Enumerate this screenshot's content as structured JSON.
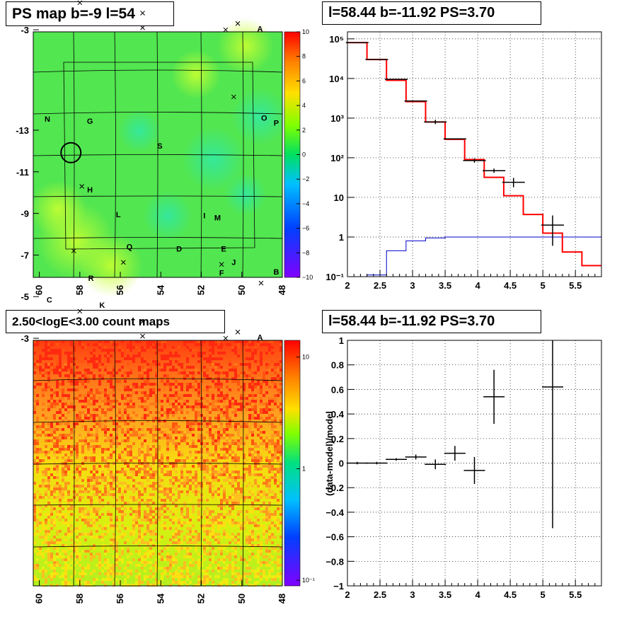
{
  "titles": {
    "tl": "PS map b=-9 l=54",
    "tr": "l=58.44 b=-11.92 PS=3.70",
    "bl": "2.50<logE<3.00 count maps",
    "br": "l=58.44 b=-11.92 PS=3.70"
  },
  "map": {
    "xticks": [
      "60",
      "58",
      "56",
      "54",
      "52",
      "50",
      "48"
    ],
    "yticks": [
      "-3",
      "-5",
      "-7",
      "-9",
      "-11",
      "-13"
    ],
    "sources": [
      {
        "name": "A",
        "l": 49.1,
        "b": -3.05
      },
      {
        "name": "B",
        "l": 48.3,
        "b": -6.2
      },
      {
        "name": "C",
        "l": 59.5,
        "b": -4.85
      },
      {
        "name": "D",
        "l": 53.1,
        "b": -7.3
      },
      {
        "name": "E",
        "l": 50.9,
        "b": -7.3
      },
      {
        "name": "F",
        "l": 51.0,
        "b": -6.15
      },
      {
        "name": "G",
        "l": 57.5,
        "b": -13.45
      },
      {
        "name": "H",
        "l": 57.5,
        "b": -10.15
      },
      {
        "name": "I",
        "l": 51.85,
        "b": -8.9
      },
      {
        "name": "J",
        "l": 50.4,
        "b": -6.65
      },
      {
        "name": "K",
        "l": 56.9,
        "b": -4.6
      },
      {
        "name": "L",
        "l": 56.1,
        "b": -8.95
      },
      {
        "name": "M",
        "l": 51.2,
        "b": -8.8
      },
      {
        "name": "N",
        "l": 59.6,
        "b": -13.55
      },
      {
        "name": "O",
        "l": 48.9,
        "b": -13.6
      },
      {
        "name": "P",
        "l": 48.3,
        "b": -13.35
      },
      {
        "name": "Q",
        "l": 55.55,
        "b": -7.4
      },
      {
        "name": "R",
        "l": 57.45,
        "b": -5.9
      },
      {
        "name": "S",
        "l": 54.05,
        "b": -12.25
      }
    ],
    "crosses": [
      {
        "l": 54.9,
        "b": -3.1
      },
      {
        "l": 50.8,
        "b": -3.0
      },
      {
        "l": 50.2,
        "b": -3.3
      },
      {
        "l": 54.9,
        "b": -3.8
      },
      {
        "l": 58.0,
        "b": -4.3
      },
      {
        "l": 49.05,
        "b": -5.65
      },
      {
        "l": 55.85,
        "b": -6.65
      },
      {
        "l": 51.0,
        "b": -6.55
      },
      {
        "l": 58.3,
        "b": -7.2
      },
      {
        "l": 57.9,
        "b": -10.3
      },
      {
        "l": 50.4,
        "b": -14.6
      }
    ],
    "circle": {
      "l": 58.44,
      "b": -11.92
    }
  },
  "colorbar_tl": {
    "ticks": [
      "10",
      "8",
      "6",
      "4",
      "2",
      "0",
      "−2",
      "−4",
      "−6",
      "−8",
      "−10"
    ],
    "range": [
      -10,
      10
    ]
  },
  "colorbar_bl": {
    "ticks": [
      "10",
      "1",
      "10⁻¹"
    ]
  },
  "chart_data": [
    {
      "type": "line",
      "title": "l=58.44 b=-11.92 PS=3.70",
      "xlim": [
        2,
        5.9
      ],
      "ylim": [
        0.1,
        150000
      ],
      "yscale": "log",
      "xticks": [
        "2",
        "2.5",
        "3",
        "3.5",
        "4",
        "4.5",
        "5",
        "5.5"
      ],
      "yticks": [
        "10⁵",
        "10⁴",
        "10³",
        "10²",
        "10",
        "1",
        "10⁻¹"
      ],
      "data_points": [
        {
          "x": 2.15,
          "y": 80000
        },
        {
          "x": 2.45,
          "y": 30000
        },
        {
          "x": 2.75,
          "y": 9500
        },
        {
          "x": 3.05,
          "y": 2700
        },
        {
          "x": 3.35,
          "y": 800
        },
        {
          "x": 3.65,
          "y": 300
        },
        {
          "x": 3.95,
          "y": 85
        },
        {
          "x": 4.25,
          "y": 47
        },
        {
          "x": 4.55,
          "y": 24
        },
        {
          "x": 5.15,
          "y": 2
        }
      ],
      "data_errors": [
        [
          4.55,
          24,
          18,
          31
        ],
        [
          5.15,
          2,
          0.6,
          3.5
        ]
      ],
      "model_steps": {
        "edges": [
          2,
          2.3,
          2.6,
          2.9,
          3.2,
          3.5,
          3.8,
          4.1,
          4.4,
          4.7,
          5.0,
          5.3,
          5.6,
          5.9
        ],
        "values": [
          80000,
          30000,
          9000,
          2600,
          800,
          290,
          90,
          32,
          11,
          3.7,
          1.25,
          0.42,
          0.19
        ]
      },
      "background_steps": {
        "edges": [
          2,
          2.3,
          2.6,
          2.9,
          3.2,
          3.5,
          5.9
        ],
        "values": [
          0.08,
          0.11,
          0.45,
          0.8,
          0.95,
          1.0
        ]
      }
    },
    {
      "type": "scatter",
      "title": "l=58.44 b=-11.92 PS=3.70",
      "ylabel": "(data-model)/model",
      "xlim": [
        2,
        5.9
      ],
      "ylim": [
        -1,
        1
      ],
      "xticks": [
        "2",
        "2.5",
        "3",
        "3.5",
        "4",
        "4.5",
        "5",
        "5.5"
      ],
      "yticks": [
        "1",
        "0.8",
        "0.6",
        "0.4",
        "0.2",
        "0",
        "−0.2",
        "−0.4",
        "−0.6",
        "−0.8",
        "−1"
      ],
      "points": [
        {
          "x": 2.15,
          "y": 0.0,
          "ylo": -0.01,
          "yhi": 0.01
        },
        {
          "x": 2.45,
          "y": 0.0,
          "ylo": -0.01,
          "yhi": 0.01
        },
        {
          "x": 2.75,
          "y": 0.03,
          "ylo": 0.02,
          "yhi": 0.04
        },
        {
          "x": 3.05,
          "y": 0.05,
          "ylo": 0.03,
          "yhi": 0.07
        },
        {
          "x": 3.35,
          "y": -0.01,
          "ylo": -0.05,
          "yhi": 0.03
        },
        {
          "x": 3.65,
          "y": 0.08,
          "ylo": 0.02,
          "yhi": 0.14
        },
        {
          "x": 3.95,
          "y": -0.06,
          "ylo": -0.17,
          "yhi": 0.05
        },
        {
          "x": 4.25,
          "y": 0.54,
          "ylo": 0.32,
          "yhi": 0.76
        },
        {
          "x": 5.15,
          "y": 0.62,
          "ylo": -0.53,
          "yhi": 1.0
        }
      ]
    }
  ]
}
